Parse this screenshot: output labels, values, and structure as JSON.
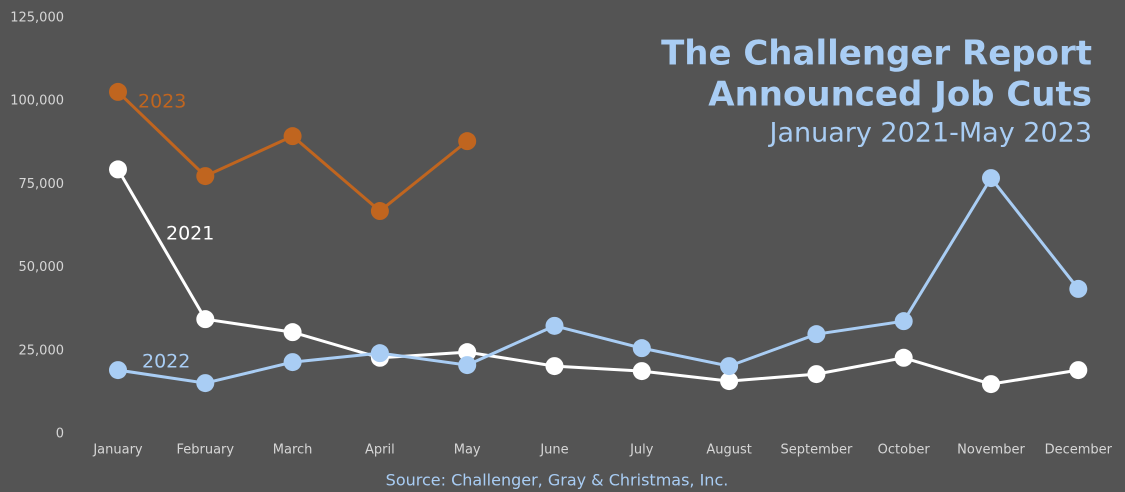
{
  "chart_data": {
    "type": "line",
    "title": "The Challenger Report",
    "title2": "Announced Job Cuts",
    "subtitle": "January 2021-May 2023",
    "source": "Source: Challenger, Gray & Christmas, Inc.",
    "categories": [
      "January",
      "February",
      "March",
      "April",
      "May",
      "June",
      "July",
      "August",
      "September",
      "October",
      "November",
      "December"
    ],
    "series": [
      {
        "name": "2021",
        "color": "#ffffff",
        "values": [
          79500,
          34500,
          30600,
          22900,
          24600,
          20400,
          18900,
          15900,
          18000,
          22900,
          15000,
          19200
        ]
      },
      {
        "name": "2022",
        "color": "#a9cdf4",
        "values": [
          19200,
          15300,
          21600,
          24300,
          20700,
          32500,
          25800,
          20400,
          30000,
          33900,
          76900,
          43600
        ]
      },
      {
        "name": "2023",
        "color": "#c0651f",
        "values": [
          102800,
          77500,
          89500,
          67000,
          88000,
          null,
          null,
          null,
          null,
          null,
          null,
          null
        ]
      }
    ],
    "ylim": [
      0,
      125000
    ],
    "yticks": [
      0,
      {
        "value": 25000,
        "label": "25,000"
      },
      {
        "value": 50000,
        "label": "50,000"
      },
      {
        "value": 75000,
        "label": "75,000"
      },
      {
        "value": 100000,
        "label": "100,000"
      },
      {
        "value": 125000,
        "label": "125,000"
      }
    ],
    "grid": false
  }
}
